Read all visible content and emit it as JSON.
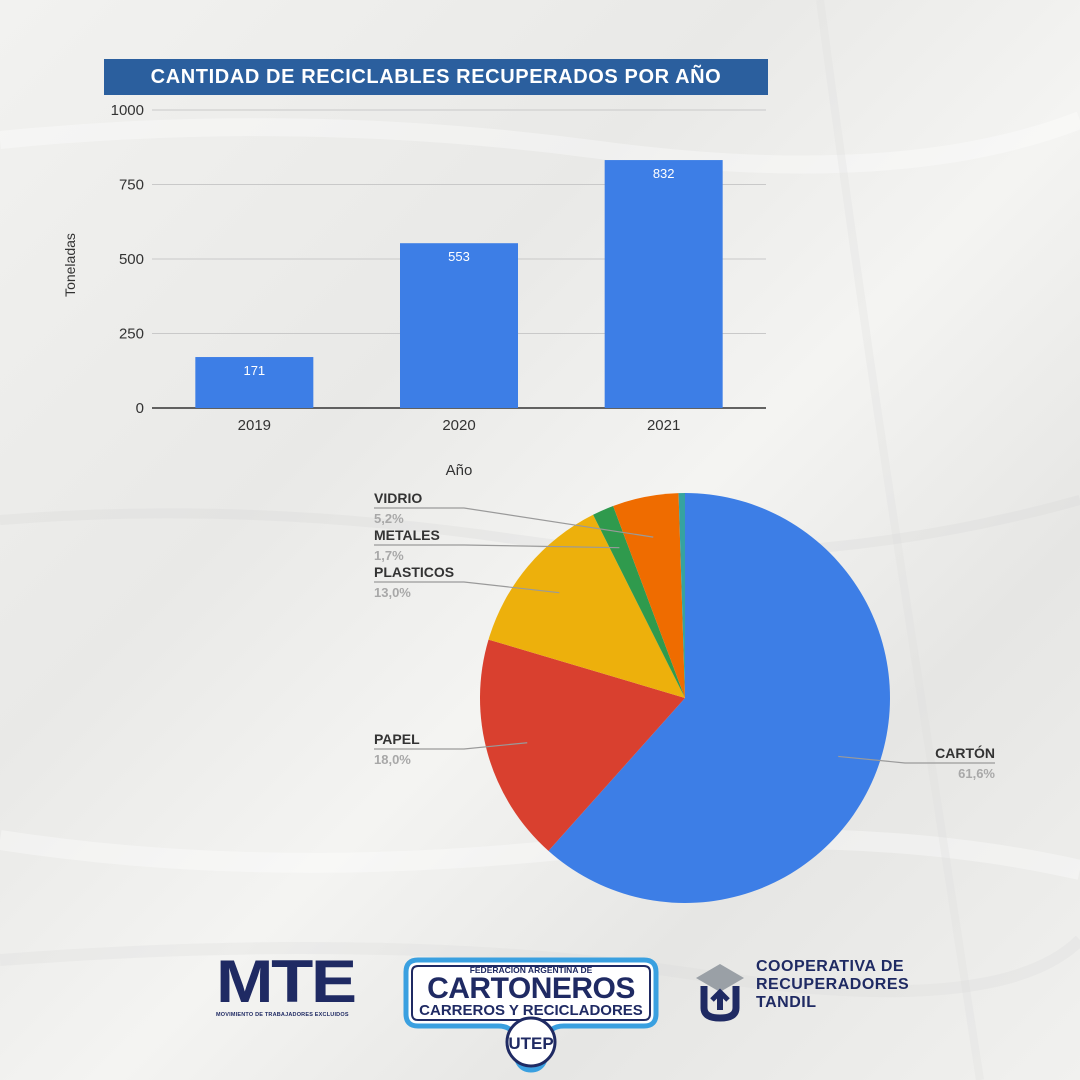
{
  "title": "CANTIDAD DE RECICLABLES RECUPERADOS POR AÑO",
  "chart_data": [
    {
      "type": "bar",
      "categories": [
        "2019",
        "2020",
        "2021"
      ],
      "values": [
        171,
        553,
        832
      ],
      "data_labels": [
        "171",
        "553",
        "832"
      ],
      "title": "CANTIDAD DE RECICLABLES RECUPERADOS POR AÑO",
      "xlabel": "Año",
      "ylabel": "Toneladas",
      "ylim": [
        0,
        1000
      ],
      "yticks": [
        0,
        250,
        500,
        750,
        1000
      ],
      "grid": true,
      "bar_color": "#3d7ee6"
    },
    {
      "type": "pie",
      "slices": [
        {
          "label": "CARTÓN",
          "percent_label": "61,6%",
          "value": 61.6,
          "color": "#3d7ee6"
        },
        {
          "label": "PAPEL",
          "percent_label": "18,0%",
          "value": 18.0,
          "color": "#d9402f"
        },
        {
          "label": "PLASTICOS",
          "percent_label": "13,0%",
          "value": 13.0,
          "color": "#edb00c"
        },
        {
          "label": "METALES",
          "percent_label": "1,7%",
          "value": 1.7,
          "color": "#2f9a4d"
        },
        {
          "label": "VIDRIO",
          "percent_label": "5,2%",
          "value": 5.2,
          "color": "#ef6c00"
        },
        {
          "label": "",
          "percent_label": "",
          "value": 0.5,
          "color": "#36a3a0"
        }
      ]
    }
  ],
  "logos": {
    "mte_title": "MTE",
    "mte_subtitle": "MOVIMIENTO DE TRABAJADORES EXCLUIDOS",
    "fed_top": "FEDERACIÓN ARGENTINA DE",
    "fed_main": "CARTONEROS",
    "fed_sub": "CARREROS Y RECICLADORES",
    "fed_badge": "UTEP",
    "coop_line1": "COOPERATIVA DE",
    "coop_line2": "RECUPERADORES",
    "coop_line3": "TANDIL"
  }
}
